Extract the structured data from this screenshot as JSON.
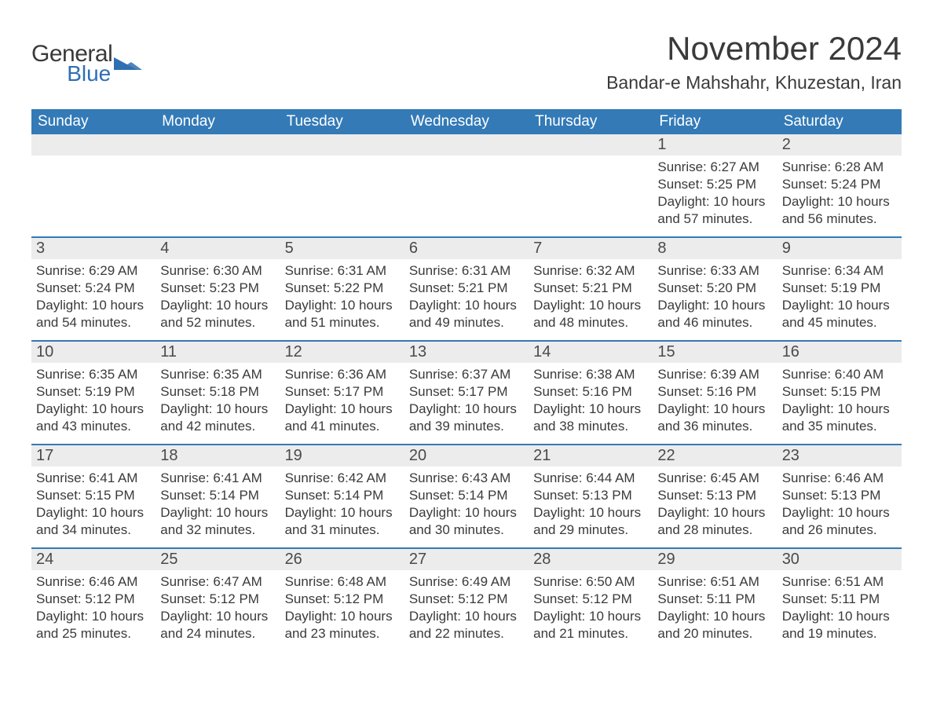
{
  "logo": {
    "word1": "General",
    "word2": "Blue",
    "triangle_color": "#2f6fb3"
  },
  "title": "November 2024",
  "location": "Bandar-e Mahshahr, Khuzestan, Iran",
  "colors": {
    "header_bg": "#337ab7",
    "header_text": "#ffffff",
    "daynum_bg": "#ececec",
    "text": "#3a3a3a",
    "rule": "#337ab7"
  },
  "typography": {
    "title_fontsize": 42,
    "location_fontsize": 23,
    "dow_fontsize": 19,
    "daynum_fontsize": 20,
    "body_fontsize": 17
  },
  "days_of_week": [
    "Sunday",
    "Monday",
    "Tuesday",
    "Wednesday",
    "Thursday",
    "Friday",
    "Saturday"
  ],
  "labels": {
    "sunrise": "Sunrise:",
    "sunset": "Sunset:",
    "daylight": "Daylight:"
  },
  "weeks": [
    [
      {
        "empty": true
      },
      {
        "empty": true
      },
      {
        "empty": true
      },
      {
        "empty": true
      },
      {
        "empty": true
      },
      {
        "num": "1",
        "sunrise": "6:27 AM",
        "sunset": "5:25 PM",
        "daylight": "10 hours and 57 minutes."
      },
      {
        "num": "2",
        "sunrise": "6:28 AM",
        "sunset": "5:24 PM",
        "daylight": "10 hours and 56 minutes."
      }
    ],
    [
      {
        "num": "3",
        "sunrise": "6:29 AM",
        "sunset": "5:24 PM",
        "daylight": "10 hours and 54 minutes."
      },
      {
        "num": "4",
        "sunrise": "6:30 AM",
        "sunset": "5:23 PM",
        "daylight": "10 hours and 52 minutes."
      },
      {
        "num": "5",
        "sunrise": "6:31 AM",
        "sunset": "5:22 PM",
        "daylight": "10 hours and 51 minutes."
      },
      {
        "num": "6",
        "sunrise": "6:31 AM",
        "sunset": "5:21 PM",
        "daylight": "10 hours and 49 minutes."
      },
      {
        "num": "7",
        "sunrise": "6:32 AM",
        "sunset": "5:21 PM",
        "daylight": "10 hours and 48 minutes."
      },
      {
        "num": "8",
        "sunrise": "6:33 AM",
        "sunset": "5:20 PM",
        "daylight": "10 hours and 46 minutes."
      },
      {
        "num": "9",
        "sunrise": "6:34 AM",
        "sunset": "5:19 PM",
        "daylight": "10 hours and 45 minutes."
      }
    ],
    [
      {
        "num": "10",
        "sunrise": "6:35 AM",
        "sunset": "5:19 PM",
        "daylight": "10 hours and 43 minutes."
      },
      {
        "num": "11",
        "sunrise": "6:35 AM",
        "sunset": "5:18 PM",
        "daylight": "10 hours and 42 minutes."
      },
      {
        "num": "12",
        "sunrise": "6:36 AM",
        "sunset": "5:17 PM",
        "daylight": "10 hours and 41 minutes."
      },
      {
        "num": "13",
        "sunrise": "6:37 AM",
        "sunset": "5:17 PM",
        "daylight": "10 hours and 39 minutes."
      },
      {
        "num": "14",
        "sunrise": "6:38 AM",
        "sunset": "5:16 PM",
        "daylight": "10 hours and 38 minutes."
      },
      {
        "num": "15",
        "sunrise": "6:39 AM",
        "sunset": "5:16 PM",
        "daylight": "10 hours and 36 minutes."
      },
      {
        "num": "16",
        "sunrise": "6:40 AM",
        "sunset": "5:15 PM",
        "daylight": "10 hours and 35 minutes."
      }
    ],
    [
      {
        "num": "17",
        "sunrise": "6:41 AM",
        "sunset": "5:15 PM",
        "daylight": "10 hours and 34 minutes."
      },
      {
        "num": "18",
        "sunrise": "6:41 AM",
        "sunset": "5:14 PM",
        "daylight": "10 hours and 32 minutes."
      },
      {
        "num": "19",
        "sunrise": "6:42 AM",
        "sunset": "5:14 PM",
        "daylight": "10 hours and 31 minutes."
      },
      {
        "num": "20",
        "sunrise": "6:43 AM",
        "sunset": "5:14 PM",
        "daylight": "10 hours and 30 minutes."
      },
      {
        "num": "21",
        "sunrise": "6:44 AM",
        "sunset": "5:13 PM",
        "daylight": "10 hours and 29 minutes."
      },
      {
        "num": "22",
        "sunrise": "6:45 AM",
        "sunset": "5:13 PM",
        "daylight": "10 hours and 28 minutes."
      },
      {
        "num": "23",
        "sunrise": "6:46 AM",
        "sunset": "5:13 PM",
        "daylight": "10 hours and 26 minutes."
      }
    ],
    [
      {
        "num": "24",
        "sunrise": "6:46 AM",
        "sunset": "5:12 PM",
        "daylight": "10 hours and 25 minutes."
      },
      {
        "num": "25",
        "sunrise": "6:47 AM",
        "sunset": "5:12 PM",
        "daylight": "10 hours and 24 minutes."
      },
      {
        "num": "26",
        "sunrise": "6:48 AM",
        "sunset": "5:12 PM",
        "daylight": "10 hours and 23 minutes."
      },
      {
        "num": "27",
        "sunrise": "6:49 AM",
        "sunset": "5:12 PM",
        "daylight": "10 hours and 22 minutes."
      },
      {
        "num": "28",
        "sunrise": "6:50 AM",
        "sunset": "5:12 PM",
        "daylight": "10 hours and 21 minutes."
      },
      {
        "num": "29",
        "sunrise": "6:51 AM",
        "sunset": "5:11 PM",
        "daylight": "10 hours and 20 minutes."
      },
      {
        "num": "30",
        "sunrise": "6:51 AM",
        "sunset": "5:11 PM",
        "daylight": "10 hours and 19 minutes."
      }
    ]
  ]
}
